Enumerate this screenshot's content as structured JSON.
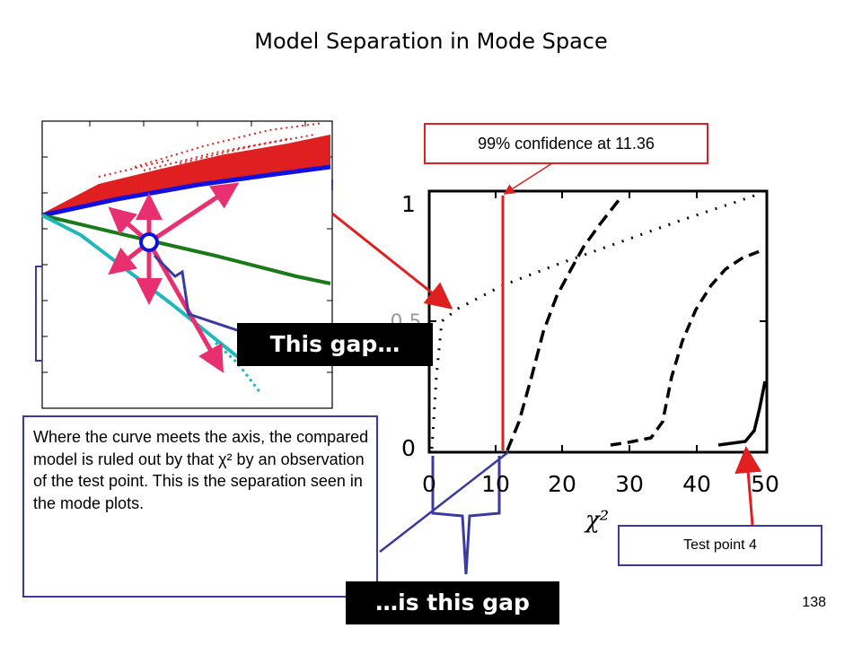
{
  "slide": {
    "title": "Model Separation in Mode Space",
    "page_number": "138"
  },
  "annotations": {
    "confidence_label": "99% confidence at 11.36",
    "gap_label_1": "This gap…",
    "gap_label_2": "…is this gap",
    "explanation_text": "Where the curve meets the axis, the compared model is ruled out by that χ² by an observation of the test point. This is the separation seen in the mode plots.",
    "test_point_label": "Test point 4"
  },
  "cdf_plot": {
    "x_ticks": [
      "0",
      "10",
      "20",
      "30",
      "40",
      "50"
    ],
    "y_ticks": [
      "0",
      "0.5",
      "1"
    ],
    "x_axis_symbol": "χ²",
    "threshold": 11.36
  },
  "colors": {
    "red": "#e02020",
    "blue": "#1010e0",
    "green": "#1a7a1a",
    "cyan": "#20b8b8",
    "pink": "#e83070",
    "navy": "#3a3aa0"
  }
}
